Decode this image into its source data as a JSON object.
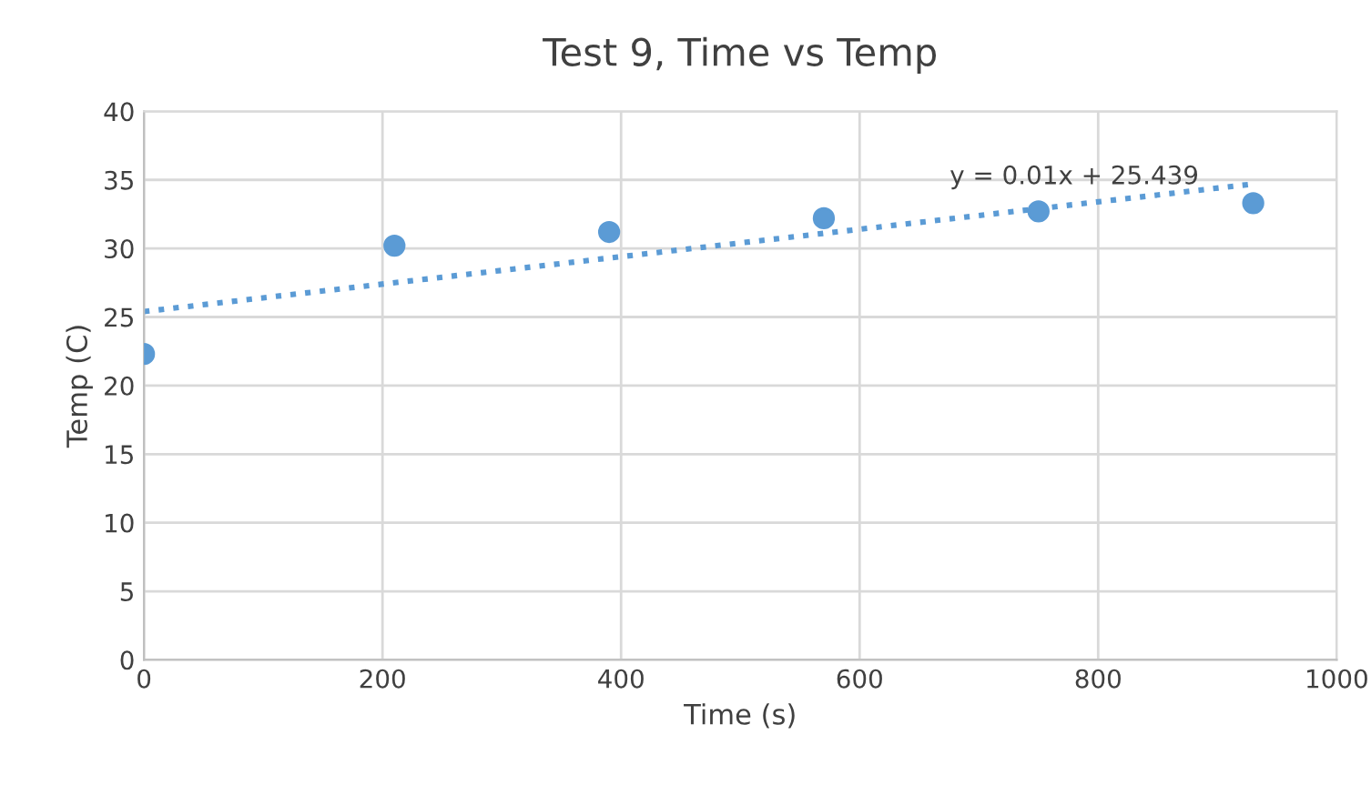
{
  "chart_data": {
    "type": "scatter",
    "title": "Test 9, Time vs Temp",
    "xlabel": "Time (s)",
    "ylabel": "Temp (C)",
    "xlim": [
      0,
      1000
    ],
    "xticks": [
      0,
      200,
      400,
      600,
      800,
      1000
    ],
    "ylim": [
      0,
      40
    ],
    "yticks": [
      0,
      5,
      10,
      15,
      20,
      25,
      30,
      35,
      40
    ],
    "grid": true,
    "marker": "circle",
    "series": [
      {
        "color": "#5b9bd5",
        "x": [
          0,
          210,
          390,
          570,
          750,
          930
        ],
        "values": [
          22.3,
          30.2,
          31.2,
          32.2,
          32.7,
          33.3
        ]
      },
      {
        "type": "line",
        "color": "#5b9bd5",
        "line_style": "dotted",
        "marker": "none",
        "x": [
          0,
          930
        ],
        "values": [
          25.4,
          34.7
        ]
      }
    ],
    "annotations": [
      "y = 0.01x + 25.439"
    ]
  }
}
